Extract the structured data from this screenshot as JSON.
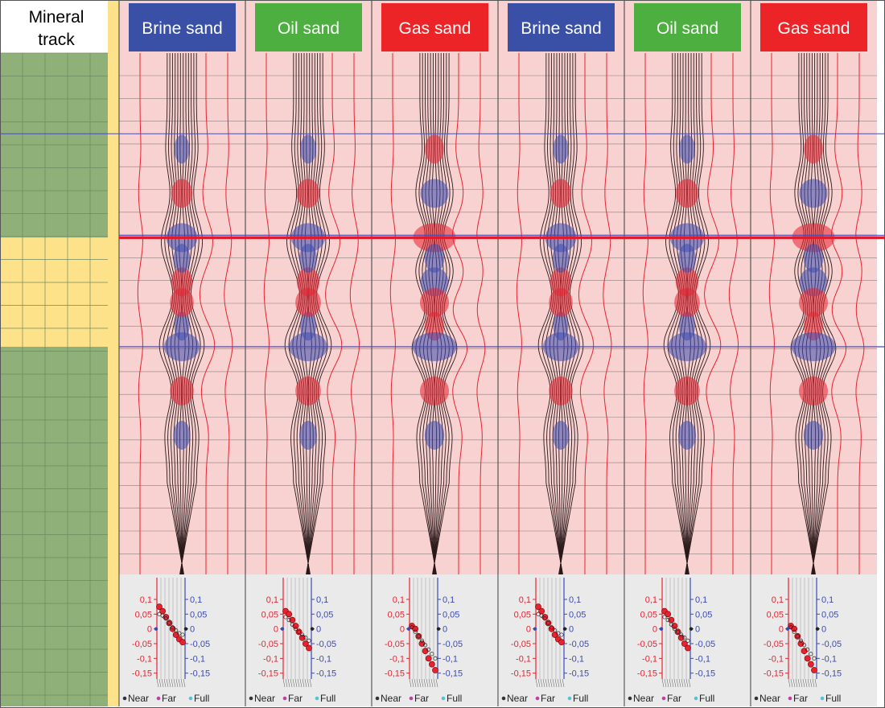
{
  "mineral_track": {
    "title_line1": "Mineral",
    "title_line2": "track",
    "zones": [
      {
        "top": 0.0,
        "bottom": 0.355,
        "mineral": "shale",
        "color": "#8fb079"
      },
      {
        "top": 0.355,
        "bottom": 0.565,
        "mineral": "sand",
        "color": "#fde28a"
      },
      {
        "top": 0.565,
        "bottom": 1.0,
        "mineral": "shale",
        "color": "#8fb079"
      }
    ]
  },
  "colors": {
    "positive": "#e82330",
    "negative": "#3b4bb0",
    "background": "#f8d1d1",
    "brine": "#3a50a6",
    "oil": "#4caf40",
    "gas": "#ec2428",
    "shale": "#8fb079",
    "sand": "#fde28a",
    "panel_bg": "#eaeaea"
  },
  "panels": [
    {
      "label": "Brine sand",
      "fluid": "brine",
      "header_color": "#3a50a6",
      "grad_left": [
        0.075,
        0.06,
        0.04,
        0.02,
        0.0,
        -0.02,
        -0.035,
        -0.045
      ],
      "grad_right": [
        0.05,
        0.045,
        0.035,
        0.02,
        0.005,
        -0.005,
        -0.015,
        -0.02
      ],
      "top_amp": 0.85,
      "bot_amp": 1.0
    },
    {
      "label": "Oil sand",
      "fluid": "oil",
      "header_color": "#4caf40",
      "grad_left": [
        0.06,
        0.05,
        0.03,
        0.01,
        -0.01,
        -0.03,
        -0.05,
        -0.065
      ],
      "grad_right": [
        0.04,
        0.03,
        0.015,
        0.0,
        -0.01,
        -0.02,
        -0.03,
        -0.04
      ],
      "top_amp": 0.95,
      "bot_amp": 1.1
    },
    {
      "label": "Gas sand",
      "fluid": "gas",
      "header_color": "#ec2428",
      "grad_left": [
        0.01,
        0.0,
        -0.025,
        -0.05,
        -0.075,
        -0.1,
        -0.12,
        -0.14
      ],
      "grad_right": [
        0.005,
        -0.01,
        -0.025,
        -0.04,
        -0.055,
        -0.07,
        -0.085,
        -0.1
      ],
      "top_amp": 1.25,
      "bot_amp": 1.3
    },
    {
      "label": "Brine sand",
      "fluid": "brine",
      "header_color": "#3a50a6",
      "grad_left": [
        0.075,
        0.06,
        0.04,
        0.02,
        0.0,
        -0.02,
        -0.035,
        -0.045
      ],
      "grad_right": [
        0.05,
        0.045,
        0.035,
        0.02,
        0.005,
        -0.005,
        -0.015,
        -0.02
      ],
      "top_amp": 0.85,
      "bot_amp": 1.0
    },
    {
      "label": "Oil sand",
      "fluid": "oil",
      "header_color": "#4caf40",
      "grad_left": [
        0.06,
        0.05,
        0.03,
        0.01,
        -0.01,
        -0.03,
        -0.05,
        -0.065
      ],
      "grad_right": [
        0.04,
        0.03,
        0.015,
        0.0,
        -0.01,
        -0.02,
        -0.03,
        -0.04
      ],
      "top_amp": 0.95,
      "bot_amp": 1.1
    },
    {
      "label": "Gas sand",
      "fluid": "gas",
      "header_color": "#ec2428",
      "grad_left": [
        0.01,
        0.0,
        -0.025,
        -0.05,
        -0.075,
        -0.1,
        -0.12,
        -0.14
      ],
      "grad_right": [
        0.005,
        -0.01,
        -0.025,
        -0.04,
        -0.055,
        -0.07,
        -0.085,
        -0.1
      ],
      "top_amp": 1.25,
      "bot_amp": 1.3
    }
  ],
  "amplitude_axis": {
    "left_ticks": [
      "0,1",
      "0,05",
      "0",
      "-0,05",
      "-0,1",
      "-0,15"
    ],
    "right_ticks": [
      "0,1",
      "0,05",
      "0",
      "-0,05",
      "-0,1",
      "-0,15"
    ],
    "tick_values": [
      0.1,
      0.05,
      0,
      -0.05,
      -0.1,
      -0.15
    ],
    "ylim": [
      -0.17,
      0.13
    ]
  },
  "legend": [
    {
      "label": "Near",
      "color": "#333333"
    },
    {
      "label": "Far",
      "color": "#c03ea8"
    },
    {
      "label": "Full",
      "color": "#52c4d8"
    }
  ],
  "horizons": {
    "top_sand": 0.355,
    "base_sand": 0.565,
    "upper_marker": 0.07
  }
}
